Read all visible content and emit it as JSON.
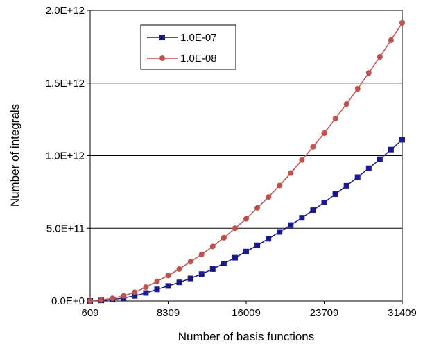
{
  "chart_data": {
    "type": "line",
    "title": "",
    "xlabel": "Number of basis functions",
    "ylabel": "Number of integrals",
    "xlim": [
      609,
      31409
    ],
    "ylim": [
      0,
      2000000000000
    ],
    "x_ticks": [
      609,
      8309,
      16009,
      23709,
      31409
    ],
    "x_tick_labels": [
      "609",
      "8309",
      "16009",
      "23709",
      "31409"
    ],
    "y_ticks": [
      0,
      500000000000,
      1000000000000,
      1500000000000,
      2000000000000
    ],
    "y_tick_labels": [
      "0.0E+0",
      "5.0E+11",
      "1.0E+12",
      "1.5E+12",
      "2.0E+12"
    ],
    "grid": "horizontal major gridlines",
    "legend_position": "top-left",
    "x": [
      609,
      1709,
      2809,
      3909,
      5009,
      6109,
      7209,
      8309,
      9409,
      10509,
      11609,
      12709,
      13809,
      14909,
      16009,
      17109,
      18209,
      19309,
      20409,
      21509,
      22609,
      23709,
      24809,
      25909,
      27009,
      28109,
      29209,
      30309,
      31409
    ],
    "series": [
      {
        "name": "1.0E-07",
        "color": "#1a1a8c",
        "marker": "square",
        "values": [
          0,
          4000000000,
          10000000000,
          20000000000,
          35000000000,
          55000000000,
          80000000000,
          103000000000,
          128000000000,
          155000000000,
          185000000000,
          220000000000,
          258000000000,
          298000000000,
          340000000000,
          383000000000,
          428000000000,
          475000000000,
          522000000000,
          572000000000,
          625000000000,
          678000000000,
          735000000000,
          793000000000,
          852000000000,
          913000000000,
          975000000000,
          1042000000000,
          1110000000000
        ]
      },
      {
        "name": "1.0E-08",
        "color": "#c0504d",
        "marker": "circle",
        "values": [
          0,
          7000000000,
          18000000000,
          35000000000,
          60000000000,
          95000000000,
          135000000000,
          175000000000,
          220000000000,
          270000000000,
          320000000000,
          375000000000,
          435000000000,
          500000000000,
          565000000000,
          640000000000,
          715000000000,
          795000000000,
          880000000000,
          970000000000,
          1060000000000,
          1155000000000,
          1255000000000,
          1355000000000,
          1460000000000,
          1570000000000,
          1680000000000,
          1795000000000,
          1915000000000
        ]
      }
    ]
  }
}
